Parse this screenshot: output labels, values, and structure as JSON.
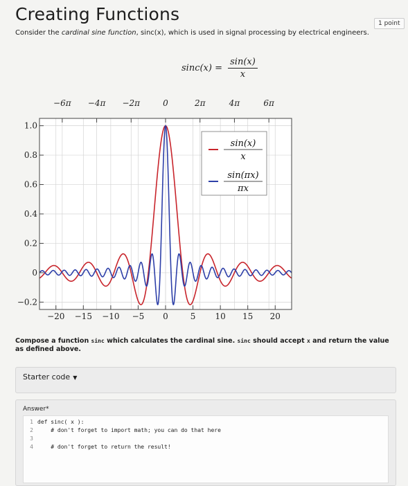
{
  "page": {
    "title": "Creating Functions",
    "points": "1 point",
    "intro_before": "Consider the ",
    "intro_italic": "cardinal sine function",
    "intro_after": ", sinc(x), which is used in signal processing by electrical engineers.",
    "formula_lhs": "sinc(x) =",
    "formula_num": "sin(x)",
    "formula_den": "x",
    "prompt_a": "Compose a function ",
    "prompt_code1": "sinc",
    "prompt_b": " which calculates the cardinal sine. ",
    "prompt_code2": "sinc",
    "prompt_c": " should accept ",
    "prompt_code3": "x",
    "prompt_d": " and return the value as defined above.",
    "starter_label": "Starter code",
    "answer_label": "Answer*"
  },
  "editor": {
    "lines": [
      {
        "num": "1",
        "text": "def sinc( x ):"
      },
      {
        "num": "2",
        "text": "    # don't forget to import math; you can do that here"
      },
      {
        "num": "3",
        "text": ""
      },
      {
        "num": "4",
        "text": "    # don't forget to return the result!"
      }
    ]
  },
  "chart_data": {
    "type": "line",
    "xlim": [
      -23,
      23
    ],
    "ylim": [
      -0.25,
      1.05
    ],
    "x_ticks": [
      -20,
      -15,
      -10,
      -5,
      0,
      5,
      10,
      15,
      20
    ],
    "x_tick_labels": [
      "−20",
      "−15",
      "−10",
      "−5",
      "0",
      "5",
      "10",
      "15",
      "20"
    ],
    "y_ticks": [
      1.0,
      0.8,
      0.6,
      0.4,
      0.2,
      0.0,
      -0.2
    ],
    "y_tick_labels": [
      "1.0",
      "0.8",
      "0.6",
      "0.4",
      "0.2",
      "0",
      "−0.2"
    ],
    "top_ticks": [
      -18.85,
      -12.566,
      -6.283,
      0,
      6.283,
      12.566,
      18.85
    ],
    "top_tick_labels": [
      "−6π",
      "−4π",
      "−2π",
      "0",
      "2π",
      "4π",
      "6π"
    ],
    "grid": true,
    "legend_position": "top-right",
    "series": [
      {
        "name": "sin(x)/x",
        "legend_num": "sin(x)",
        "legend_den": "x",
        "color": "#c8242b",
        "function": "sin(x)/x"
      },
      {
        "name": "sin(πx)/πx",
        "legend_num": "sin(πx)",
        "legend_den": "πx",
        "color": "#2d3fa8",
        "function": "sin(pi*x)/(pi*x)"
      }
    ]
  }
}
